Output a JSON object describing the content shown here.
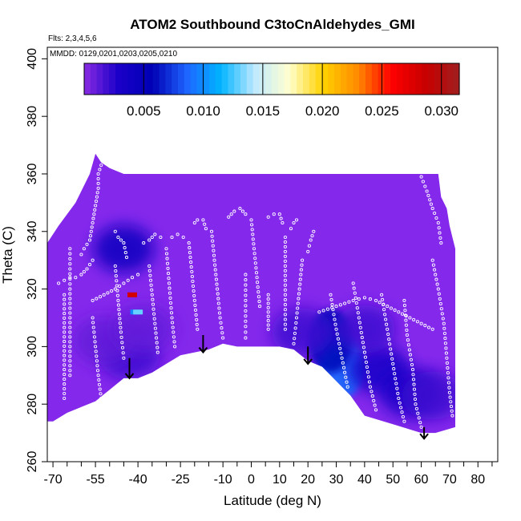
{
  "chart_data": {
    "type": "heatmap",
    "title": "ATOM2 Southbound C3toCnAldehydes_GMI",
    "flights_note": "Flts: 2,3,4,5,6",
    "dates_note": "MMDD: 0129,0201,0203,0205,0210",
    "xlabel": "Latitude (deg N)",
    "ylabel": "Theta (C)",
    "xlim": [
      -72,
      87
    ],
    "ylim": [
      260,
      404
    ],
    "x_ticks": [
      -70,
      -55,
      -40,
      -25,
      -10,
      0,
      10,
      20,
      30,
      40,
      50,
      60,
      70,
      80
    ],
    "x_tick_labels": [
      "-70",
      "-55",
      "-40",
      "-25",
      "-10",
      "0",
      "10",
      "20",
      "30",
      "40",
      "50",
      "60",
      "70",
      "80"
    ],
    "x_minor_ticks": [
      -65,
      -60,
      -50,
      -45,
      -35,
      -30,
      -20,
      -15,
      -5,
      5,
      15,
      25,
      35,
      45,
      55,
      65,
      75,
      85
    ],
    "y_ticks": [
      260,
      280,
      300,
      320,
      340,
      360,
      380,
      400
    ],
    "y_tick_labels": [
      "260",
      "280",
      "300",
      "320",
      "340",
      "360",
      "380",
      "400"
    ],
    "colorbar": {
      "range": [
        0,
        0.0315
      ],
      "ticks": [
        0.005,
        0.01,
        0.015,
        0.02,
        0.025,
        0.03
      ],
      "tick_labels": [
        "0.005",
        "0.010",
        "0.015",
        "0.020",
        "0.025",
        "0.030"
      ],
      "colors": [
        "#8a2be2",
        "#1a00c8",
        "#0000b4",
        "#1e64ff",
        "#00b4ff",
        "#bfe9ff",
        "#ffffd0",
        "#ffd200",
        "#ff8c00",
        "#ff0000",
        "#c80000",
        "#a01e1e"
      ]
    },
    "background_value": 0.0007,
    "background_color": "#8428ec",
    "domain_outline": {
      "top": [
        [
          -72,
          336
        ],
        [
          -68,
          342
        ],
        [
          -62,
          350
        ],
        [
          -57,
          360
        ],
        [
          -55,
          367
        ],
        [
          -53,
          364
        ],
        [
          -50,
          362
        ],
        [
          -45,
          360
        ],
        [
          -40,
          360
        ],
        [
          -35,
          360
        ],
        [
          -30,
          360
        ],
        [
          -25,
          360
        ],
        [
          -20,
          360
        ],
        [
          -15,
          360
        ],
        [
          -10,
          360
        ],
        [
          -5,
          360
        ],
        [
          0,
          360
        ],
        [
          10,
          360
        ],
        [
          20,
          360
        ],
        [
          30,
          360
        ],
        [
          40,
          360
        ],
        [
          50,
          360
        ],
        [
          60,
          360
        ],
        [
          66,
          360
        ],
        [
          67,
          352
        ],
        [
          69,
          348
        ],
        [
          70,
          342
        ],
        [
          71,
          338
        ],
        [
          72,
          334
        ]
      ],
      "bottom": [
        [
          72,
          272
        ],
        [
          65,
          270
        ],
        [
          60,
          270
        ],
        [
          50,
          273
        ],
        [
          40,
          276
        ],
        [
          35,
          283
        ],
        [
          25,
          293
        ],
        [
          20,
          295
        ],
        [
          15,
          299
        ],
        [
          10,
          300
        ],
        [
          5,
          300
        ],
        [
          0,
          300
        ],
        [
          -5,
          300
        ],
        [
          -10,
          301
        ],
        [
          -15,
          299
        ],
        [
          -20,
          298
        ],
        [
          -25,
          297
        ],
        [
          -30,
          294
        ],
        [
          -35,
          291
        ],
        [
          -40,
          289
        ],
        [
          -45,
          289
        ],
        [
          -50,
          285
        ],
        [
          -55,
          281
        ],
        [
          -60,
          279
        ],
        [
          -65,
          277
        ],
        [
          -70,
          274
        ],
        [
          -72,
          274
        ]
      ]
    },
    "enhanced_blobs": [
      {
        "lat": 32,
        "theta": 293,
        "value": 0.009
      },
      {
        "lat": 28,
        "theta": 302,
        "value": 0.006
      },
      {
        "lat": 45,
        "theta": 292,
        "value": 0.003
      },
      {
        "lat": 56,
        "theta": 284,
        "value": 0.003
      },
      {
        "lat": 18,
        "theta": 305,
        "value": 0.002
      },
      {
        "lat": -43,
        "theta": 297,
        "value": 0.002
      },
      {
        "lat": -52,
        "theta": 302,
        "value": 0.001
      },
      {
        "lat": -38,
        "theta": 306,
        "value": 0.001
      },
      {
        "lat": 64,
        "theta": 283,
        "value": 0.002
      },
      {
        "lat": 40,
        "theta": 306,
        "value": 0.002
      },
      {
        "lat": -45,
        "theta": 334,
        "value": 0.004
      }
    ],
    "hotspots": [
      {
        "lat": -42,
        "theta": 318,
        "value": 0.028
      },
      {
        "lat": -41,
        "theta": 312,
        "value": 0.01
      },
      {
        "lat": -40,
        "theta": 312,
        "value": 0.013
      }
    ],
    "arrows": [
      {
        "lat": -43,
        "theta_from": 296,
        "theta_to": 289
      },
      {
        "lat": -17,
        "theta_from": 304,
        "theta_to": 298
      },
      {
        "lat": 20,
        "theta_from": 300,
        "theta_to": 294
      },
      {
        "lat": 61,
        "theta_from": 272,
        "theta_to": 268
      }
    ],
    "observation_tracks": [
      {
        "points": [
          [
            -60,
            332
          ],
          [
            -59,
            334
          ],
          [
            -57,
            337
          ],
          [
            -56,
            343
          ],
          [
            -55,
            349
          ],
          [
            -54,
            355
          ],
          [
            -54,
            360
          ],
          [
            -53,
            363
          ]
        ]
      },
      {
        "points": [
          [
            -68,
            322
          ],
          [
            -66,
            323
          ],
          [
            -64,
            324
          ],
          [
            -62,
            324
          ],
          [
            -60,
            325
          ],
          [
            -58,
            327
          ],
          [
            -56,
            330
          ]
        ]
      },
      {
        "points": [
          [
            -56,
            316
          ],
          [
            -52,
            318
          ],
          [
            -48,
            320
          ],
          [
            -45,
            322
          ],
          [
            -42,
            324
          ],
          [
            -40,
            325
          ]
        ]
      },
      {
        "points": [
          [
            -48,
            340
          ],
          [
            -47,
            338
          ],
          [
            -45,
            336
          ],
          [
            -44,
            331
          ]
        ]
      },
      {
        "points": [
          [
            -38,
            336
          ],
          [
            -36,
            337
          ],
          [
            -34,
            339
          ],
          [
            -32,
            338
          ]
        ]
      },
      {
        "points": [
          [
            -28,
            338
          ],
          [
            -26,
            339
          ],
          [
            -24,
            338
          ]
        ]
      },
      {
        "points": [
          [
            -20,
            343
          ],
          [
            -19,
            344
          ],
          [
            -17,
            344
          ],
          [
            -16,
            341
          ]
        ]
      },
      {
        "points": [
          [
            -8,
            345
          ],
          [
            -6,
            347
          ],
          [
            -4,
            348
          ],
          [
            -2,
            346
          ]
        ]
      },
      {
        "points": [
          [
            6,
            345
          ],
          [
            8,
            346
          ],
          [
            10,
            346
          ],
          [
            11,
            343
          ]
        ]
      },
      {
        "points": [
          [
            14,
            341
          ],
          [
            15,
            343
          ],
          [
            16,
            344
          ]
        ]
      },
      {
        "points": [
          [
            20,
            333
          ],
          [
            21,
            337
          ],
          [
            22,
            340
          ]
        ]
      },
      {
        "points": [
          [
            -2,
            325
          ],
          [
            -2,
            316
          ],
          [
            -2,
            307
          ],
          [
            -2,
            303
          ]
        ]
      },
      {
        "points": [
          [
            6,
            318
          ],
          [
            6,
            312
          ],
          [
            6,
            306
          ]
        ]
      },
      {
        "points": [
          [
            24,
            312
          ],
          [
            27,
            313
          ],
          [
            30,
            314
          ],
          [
            33,
            315
          ],
          [
            36,
            316
          ],
          [
            40,
            317
          ],
          [
            44,
            316
          ],
          [
            48,
            314
          ],
          [
            52,
            312
          ],
          [
            56,
            310
          ],
          [
            60,
            308
          ],
          [
            64,
            306
          ]
        ]
      },
      {
        "points": [
          [
            60,
            359
          ],
          [
            62,
            354
          ],
          [
            64,
            348
          ],
          [
            66,
            343
          ],
          [
            67,
            336
          ]
        ]
      },
      {
        "points": [
          [
            64,
            330
          ],
          [
            66,
            320
          ],
          [
            68,
            308
          ],
          [
            69,
            296
          ],
          [
            70,
            284
          ],
          [
            71,
            276
          ]
        ]
      },
      {
        "points": [
          [
            -66,
            318
          ],
          [
            -66,
            305
          ],
          [
            -66,
            292
          ],
          [
            -66,
            282
          ]
        ]
      },
      {
        "points": [
          [
            -64,
            334
          ],
          [
            -64,
            320
          ],
          [
            -64,
            305
          ],
          [
            -64,
            290
          ]
        ]
      },
      {
        "points": [
          [
            -56,
            310
          ],
          [
            -55,
            300
          ],
          [
            -54,
            290
          ],
          [
            -53,
            282
          ]
        ]
      },
      {
        "points": [
          [
            -48,
            328
          ],
          [
            -47,
            316
          ],
          [
            -46,
            305
          ],
          [
            -45,
            296
          ]
        ]
      },
      {
        "points": [
          [
            -36,
            328
          ],
          [
            -35,
            318
          ],
          [
            -34,
            308
          ],
          [
            -33,
            298
          ]
        ]
      },
      {
        "points": [
          [
            -30,
            334
          ],
          [
            -29,
            322
          ],
          [
            -28,
            310
          ],
          [
            -27,
            300
          ]
        ]
      },
      {
        "points": [
          [
            -22,
            336
          ],
          [
            -21,
            326
          ],
          [
            -20,
            316
          ],
          [
            -19,
            306
          ]
        ]
      },
      {
        "points": [
          [
            -14,
            340
          ],
          [
            -13,
            330
          ],
          [
            -12,
            320
          ],
          [
            -11,
            310
          ],
          [
            -10,
            303
          ]
        ]
      },
      {
        "points": [
          [
            0,
            344
          ],
          [
            1,
            334
          ],
          [
            2,
            324
          ],
          [
            3,
            314
          ]
        ]
      },
      {
        "points": [
          [
            12,
            338
          ],
          [
            12,
            328
          ],
          [
            12,
            318
          ],
          [
            12,
            306
          ]
        ]
      },
      {
        "points": [
          [
            18,
            330
          ],
          [
            17,
            320
          ],
          [
            16,
            310
          ],
          [
            15,
            301
          ]
        ]
      },
      {
        "points": [
          [
            28,
            318
          ],
          [
            30,
            306
          ],
          [
            32,
            296
          ],
          [
            34,
            286
          ]
        ]
      },
      {
        "points": [
          [
            36,
            322
          ],
          [
            38,
            310
          ],
          [
            40,
            298
          ],
          [
            42,
            286
          ],
          [
            44,
            278
          ]
        ]
      },
      {
        "points": [
          [
            46,
            318
          ],
          [
            48,
            306
          ],
          [
            50,
            294
          ],
          [
            52,
            282
          ],
          [
            54,
            274
          ]
        ]
      },
      {
        "points": [
          [
            54,
            316
          ],
          [
            55,
            304
          ],
          [
            57,
            292
          ],
          [
            58,
            280
          ],
          [
            60,
            272
          ]
        ]
      }
    ]
  }
}
